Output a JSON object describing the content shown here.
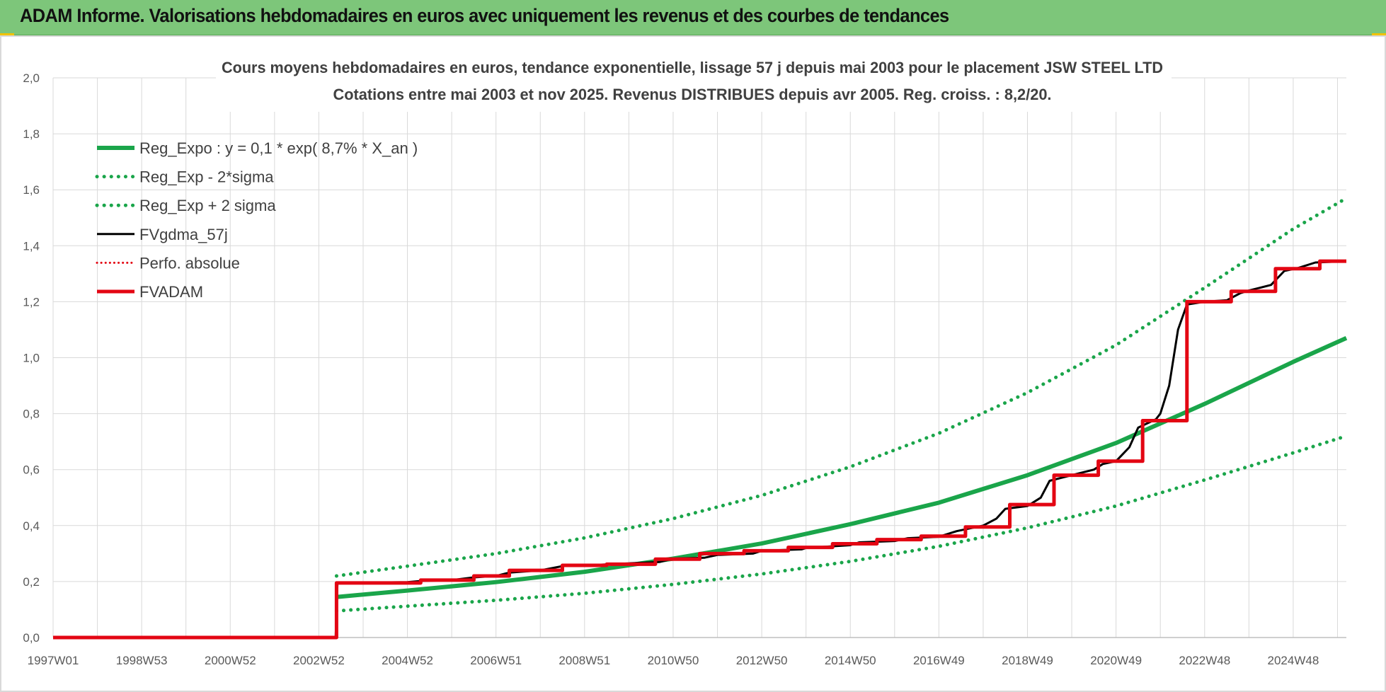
{
  "header": {
    "title": "ADAM Informe. Valorisations hebdomadaires en euros avec uniquement les revenus et des courbes de tendances"
  },
  "colors": {
    "header_bg": "#7dc67a",
    "green": "#1aa54a",
    "black": "#000000",
    "red": "#e30613",
    "grid": "#d9d9d9"
  },
  "chart_data": {
    "type": "line",
    "title": [
      "Cours moyens hebdomadaires en euros, tendance exponentielle, lissage 57 j depuis mai 2003 pour le placement JSW STEEL LTD",
      "Cotations entre mai 2003 et nov 2025. Revenus DISTRIBUES depuis avr 2005. Reg. croiss. : 8,2/20."
    ],
    "xlabel": "",
    "ylabel": "",
    "x_range": [
      1997.0,
      2026.2
    ],
    "ylim": [
      0,
      2.0
    ],
    "y_ticks": [
      0,
      0.2,
      0.4,
      0.6,
      0.8,
      1.0,
      1.2,
      1.4,
      1.6,
      1.8,
      2.0
    ],
    "y_tick_labels": [
      "0,0",
      "0,2",
      "0,4",
      "0,6",
      "0,8",
      "1,0",
      "1,2",
      "1,4",
      "1,6",
      "1,8",
      "2,0"
    ],
    "x_ticks": [
      1997.0,
      1999.0,
      2001.0,
      2003.0,
      2005.0,
      2007.0,
      2009.0,
      2011.0,
      2013.0,
      2015.0,
      2017.0,
      2019.0,
      2021.0,
      2023.0,
      2025.0
    ],
    "x_tick_labels": [
      "1997W01",
      "1998W53",
      "2000W52",
      "2002W52",
      "2004W52",
      "2006W51",
      "2008W51",
      "2010W50",
      "2012W50",
      "2014W50",
      "2016W49",
      "2018W49",
      "2020W49",
      "2022W48",
      "2024W48"
    ],
    "grid": true,
    "legend_position": "top-left",
    "series": [
      {
        "name": "Reg_Expo : y = 0,1 * exp( 8,7% *  X_an )",
        "style": "solid-green",
        "x": [
          2003.4,
          2005,
          2007,
          2009,
          2011,
          2013,
          2015,
          2017,
          2019,
          2021,
          2023,
          2025,
          2026.2
        ],
        "y": [
          0.145,
          0.168,
          0.198,
          0.235,
          0.282,
          0.336,
          0.405,
          0.482,
          0.58,
          0.695,
          0.835,
          0.985,
          1.07
        ]
      },
      {
        "name": "Reg_Exp - 2*sigma",
        "style": "dotted-green",
        "x": [
          2003.4,
          2005,
          2007,
          2009,
          2011,
          2013,
          2015,
          2017,
          2019,
          2021,
          2023,
          2025,
          2026.2
        ],
        "y": [
          0.095,
          0.112,
          0.133,
          0.158,
          0.19,
          0.227,
          0.272,
          0.326,
          0.392,
          0.47,
          0.563,
          0.66,
          0.72
        ]
      },
      {
        "name": "Reg_Exp + 2 sigma",
        "style": "dotted-green",
        "x": [
          2003.4,
          2005,
          2007,
          2009,
          2011,
          2013,
          2015,
          2017,
          2019,
          2021,
          2023,
          2025,
          2026.2
        ],
        "y": [
          0.22,
          0.255,
          0.3,
          0.356,
          0.425,
          0.508,
          0.61,
          0.73,
          0.875,
          1.045,
          1.25,
          1.46,
          1.57
        ]
      },
      {
        "name": "FVgdma_57j",
        "style": "solid-black",
        "x": [
          1997.0,
          2003.38,
          2003.42,
          2005.0,
          2005.3,
          2006.0,
          2006.5,
          2007.0,
          2007.3,
          2008.0,
          2008.5,
          2009.0,
          2009.6,
          2010.0,
          2010.7,
          2011.0,
          2011.7,
          2012.0,
          2012.8,
          2013.0,
          2013.9,
          2014.0,
          2015.0,
          2015.2,
          2016.0,
          2016.3,
          2017.0,
          2017.4,
          2018.0,
          2018.3,
          2018.5,
          2019.0,
          2019.3,
          2019.5,
          2020.0,
          2020.5,
          2020.7,
          2021.0,
          2021.3,
          2021.5,
          2021.9,
          2022.0,
          2022.2,
          2022.4,
          2022.6,
          2023.0,
          2023.5,
          2023.8,
          2024.0,
          2024.5,
          2024.8,
          2025.1,
          2025.5,
          2026.2
        ],
        "y": [
          0.0,
          0.0,
          0.195,
          0.198,
          0.202,
          0.205,
          0.215,
          0.22,
          0.232,
          0.24,
          0.255,
          0.258,
          0.262,
          0.265,
          0.27,
          0.282,
          0.285,
          0.295,
          0.3,
          0.31,
          0.315,
          0.32,
          0.33,
          0.34,
          0.345,
          0.355,
          0.36,
          0.38,
          0.4,
          0.425,
          0.46,
          0.47,
          0.5,
          0.56,
          0.58,
          0.6,
          0.62,
          0.63,
          0.68,
          0.75,
          0.78,
          0.8,
          0.9,
          1.1,
          1.19,
          1.2,
          1.205,
          1.23,
          1.24,
          1.26,
          1.31,
          1.32,
          1.34,
          1.345
        ]
      },
      {
        "name": "Perfo. absolue",
        "style": "dotted-red",
        "x": [],
        "y": []
      },
      {
        "name": "FVADAM",
        "style": "solid-red",
        "x": [
          1997.0,
          2003.4,
          2003.4,
          2005.3,
          2005.3,
          2006.5,
          2006.5,
          2007.3,
          2007.3,
          2008.5,
          2008.5,
          2009.5,
          2009.5,
          2010.6,
          2010.6,
          2011.6,
          2011.6,
          2012.6,
          2012.6,
          2013.6,
          2013.6,
          2014.6,
          2014.6,
          2015.6,
          2015.6,
          2016.6,
          2016.6,
          2017.6,
          2017.6,
          2018.6,
          2018.6,
          2019.6,
          2019.6,
          2020.6,
          2020.6,
          2021.6,
          2021.6,
          2022.6,
          2022.6,
          2023.6,
          2023.6,
          2024.6,
          2024.6,
          2025.6,
          2025.6,
          2026.2
        ],
        "y": [
          0.0,
          0.0,
          0.195,
          0.195,
          0.205,
          0.205,
          0.22,
          0.22,
          0.24,
          0.24,
          0.258,
          0.258,
          0.262,
          0.262,
          0.28,
          0.28,
          0.3,
          0.3,
          0.31,
          0.31,
          0.322,
          0.322,
          0.335,
          0.335,
          0.35,
          0.35,
          0.362,
          0.362,
          0.395,
          0.395,
          0.475,
          0.475,
          0.58,
          0.58,
          0.63,
          0.63,
          0.775,
          0.775,
          1.2,
          1.2,
          1.237,
          1.237,
          1.318,
          1.318,
          1.345,
          1.345
        ]
      }
    ]
  }
}
